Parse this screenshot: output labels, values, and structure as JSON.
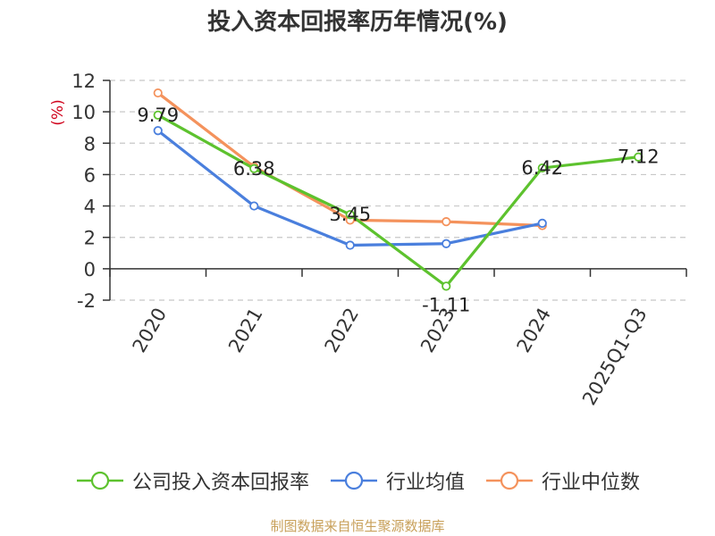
{
  "chart_data": {
    "type": "line",
    "title": "投入资本回报率历年情况(%)",
    "ylabel": "(%)",
    "xlabel": "",
    "categories": [
      "2020",
      "2021",
      "2022",
      "2023",
      "2024",
      "2025Q1-Q3"
    ],
    "ylim": [
      -2,
      12
    ],
    "yticks": [
      -2,
      0,
      2,
      4,
      6,
      8,
      10,
      12
    ],
    "grid": true,
    "legend_position": "bottom",
    "series": [
      {
        "name": "公司投入资本回报率",
        "color": "#5dc22e",
        "values": [
          9.79,
          6.38,
          3.45,
          -1.11,
          6.42,
          7.12
        ],
        "labels": [
          "9.79",
          "6.38",
          "3.45",
          "-1.11",
          "6.42",
          "7.12"
        ]
      },
      {
        "name": "行业均值",
        "color": "#4a7fdd",
        "values": [
          8.8,
          4.0,
          1.5,
          1.6,
          2.9,
          null
        ]
      },
      {
        "name": "行业中位数",
        "color": "#f4925c",
        "values": [
          11.2,
          6.5,
          3.1,
          3.0,
          2.75,
          null
        ]
      }
    ]
  },
  "source_note": "制图数据来自恒生聚源数据库"
}
